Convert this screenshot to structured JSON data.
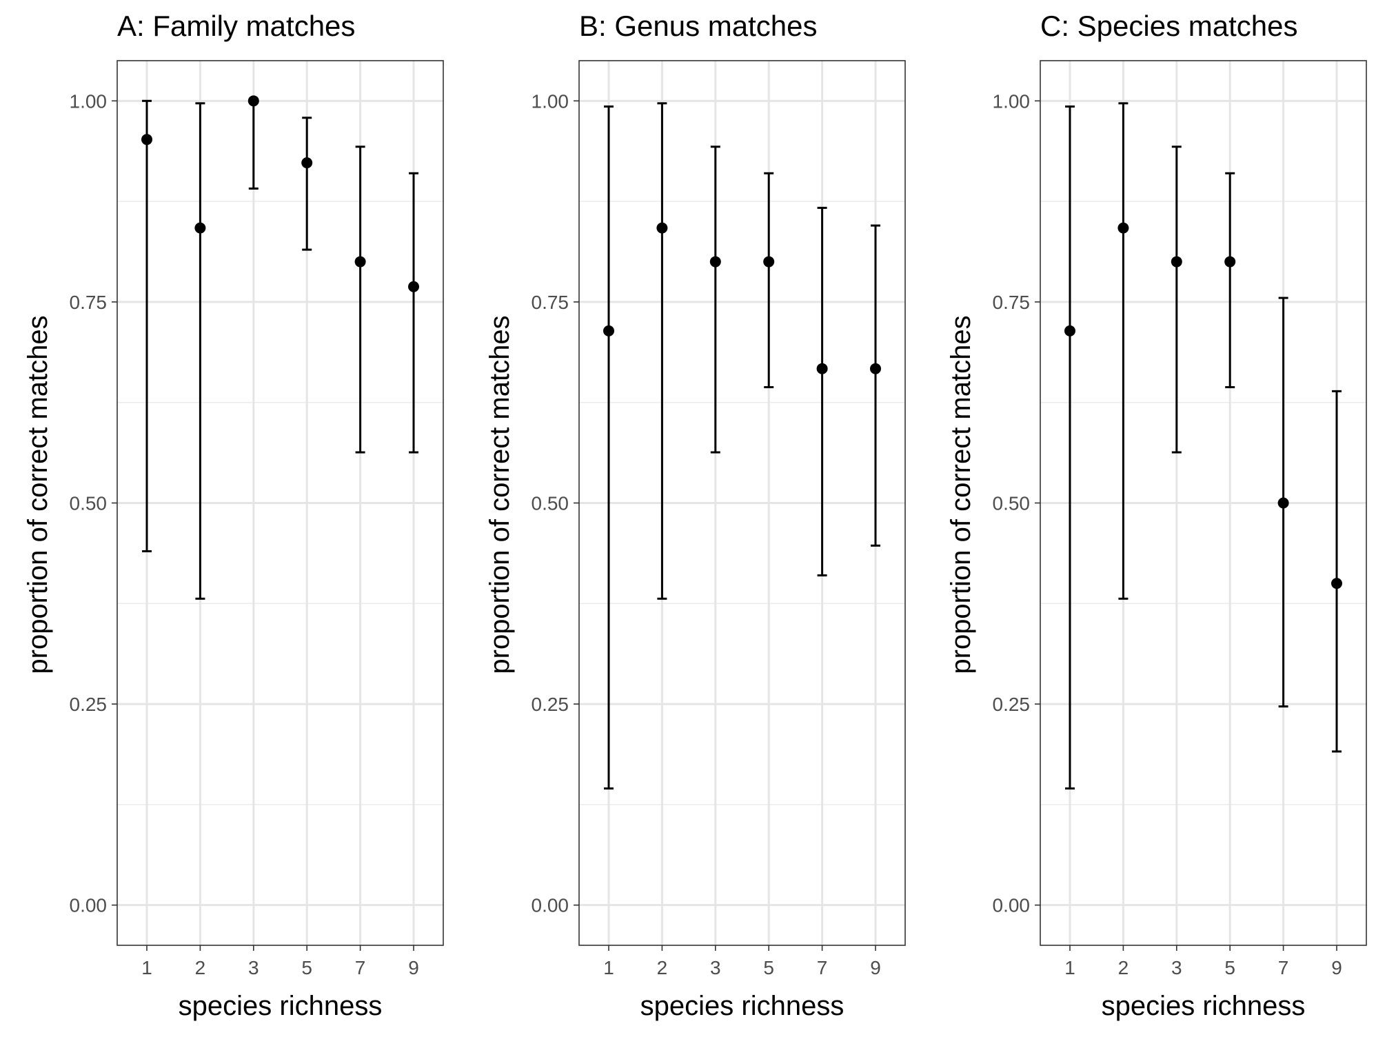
{
  "chart_data": [
    {
      "type": "scatter",
      "title": "A: Family matches",
      "xlabel": "species richness",
      "ylabel": "proportion of correct matches",
      "categories": [
        "1",
        "2",
        "3",
        "5",
        "7",
        "9"
      ],
      "ylim": [
        -0.05,
        1.05
      ],
      "yticks": [
        "0.00",
        "0.25",
        "0.50",
        "0.75",
        "1.00"
      ],
      "grid": true,
      "values": [
        0.952,
        0.842,
        1.0,
        0.923,
        0.8,
        0.769
      ],
      "lower": [
        0.44,
        0.381,
        0.891,
        0.815,
        0.563,
        0.563
      ],
      "upper": [
        1.0,
        0.997,
        1.0,
        0.979,
        0.943,
        0.91
      ]
    },
    {
      "type": "scatter",
      "title": "B: Genus matches",
      "xlabel": "species richness",
      "ylabel": "proportion of correct matches",
      "categories": [
        "1",
        "2",
        "3",
        "5",
        "7",
        "9"
      ],
      "ylim": [
        -0.05,
        1.05
      ],
      "yticks": [
        "0.00",
        "0.25",
        "0.50",
        "0.75",
        "1.00"
      ],
      "grid": true,
      "values": [
        0.714,
        0.842,
        0.8,
        0.8,
        0.667,
        0.667
      ],
      "lower": [
        0.145,
        0.381,
        0.563,
        0.644,
        0.41,
        0.447
      ],
      "upper": [
        0.993,
        0.997,
        0.943,
        0.91,
        0.867,
        0.845
      ]
    },
    {
      "type": "scatter",
      "title": "C: Species matches",
      "xlabel": "species richness",
      "ylabel": "proportion of correct matches",
      "categories": [
        "1",
        "2",
        "3",
        "5",
        "7",
        "9"
      ],
      "ylim": [
        -0.05,
        1.05
      ],
      "yticks": [
        "0.00",
        "0.25",
        "0.50",
        "0.75",
        "1.00"
      ],
      "grid": true,
      "values": [
        0.714,
        0.842,
        0.8,
        0.8,
        0.5,
        0.4
      ],
      "lower": [
        0.145,
        0.381,
        0.563,
        0.644,
        0.247,
        0.191
      ],
      "upper": [
        0.993,
        0.997,
        0.943,
        0.91,
        0.755,
        0.639
      ]
    }
  ]
}
